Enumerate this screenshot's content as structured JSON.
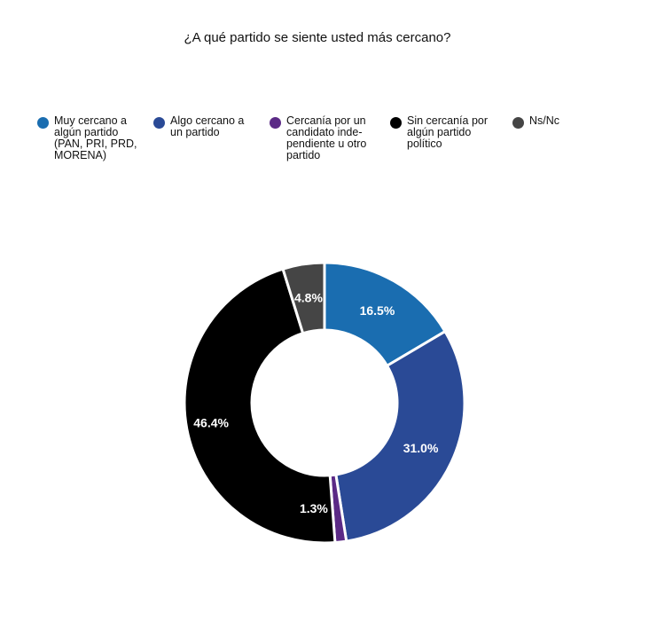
{
  "chart_data": {
    "type": "pie",
    "title": "¿A qué partido se siente usted más cercano?",
    "donut": true,
    "legend_position": "top",
    "categories": [
      "Muy cercano a algún partido (PAN, PRI, PRD, MORENA)",
      "Algo cercano a un partido",
      "Cercanía por un candidato inde-pendiente u otro partido",
      "Sin cercanía por algún partido político",
      "Ns/Nc"
    ],
    "legend_lines": [
      "Muy cercano a\nalgún partido\n(PAN, PRI, PRD,\nMORENA)",
      "Algo cercano a\nun partido",
      "Cercanía por un\ncandidato  inde-\npendiente u otro\npartido",
      "Sin cercanía por\nalgún partido\npolítico",
      "Ns/Nc"
    ],
    "values": [
      16.5,
      31.0,
      1.3,
      46.4,
      4.8
    ],
    "labels": [
      "16.5%",
      "31.0%",
      "1.3%",
      "46.4%",
      "4.8%"
    ],
    "colors": [
      "#1a6db0",
      "#2a4a96",
      "#5b2a86",
      "#000000",
      "#454545"
    ]
  }
}
